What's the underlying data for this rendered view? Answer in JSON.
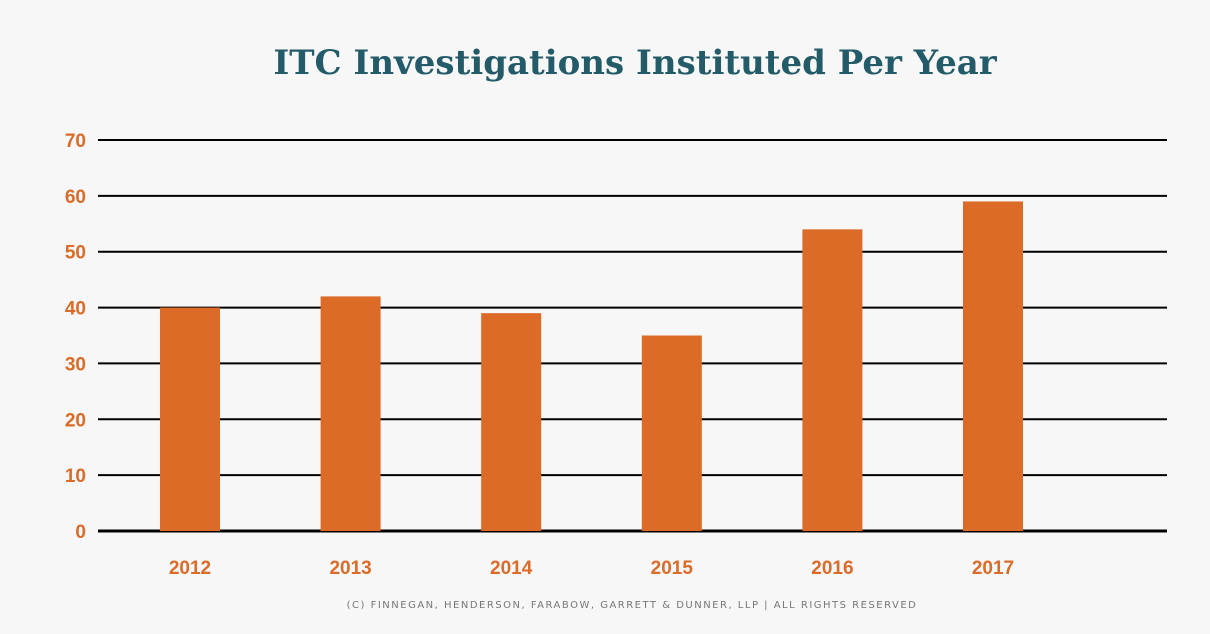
{
  "chart_data": {
    "type": "bar",
    "title": "ITC Investigations Instituted Per Year",
    "categories": [
      "2012",
      "2013",
      "2014",
      "2015",
      "2016",
      "2017"
    ],
    "values": [
      40,
      42,
      39,
      35,
      54,
      59
    ],
    "xlabel": "",
    "ylabel": "",
    "ylim": [
      0,
      70
    ],
    "yticks": [
      0,
      10,
      20,
      30,
      40,
      50,
      60,
      70
    ],
    "grid": true,
    "bar_color": "#dd6b28",
    "footer": "(C) FINNEGAN, HENDERSON, FARABOW, GARRETT & DUNNER, LLP | ALL RIGHTS RESERVED"
  }
}
